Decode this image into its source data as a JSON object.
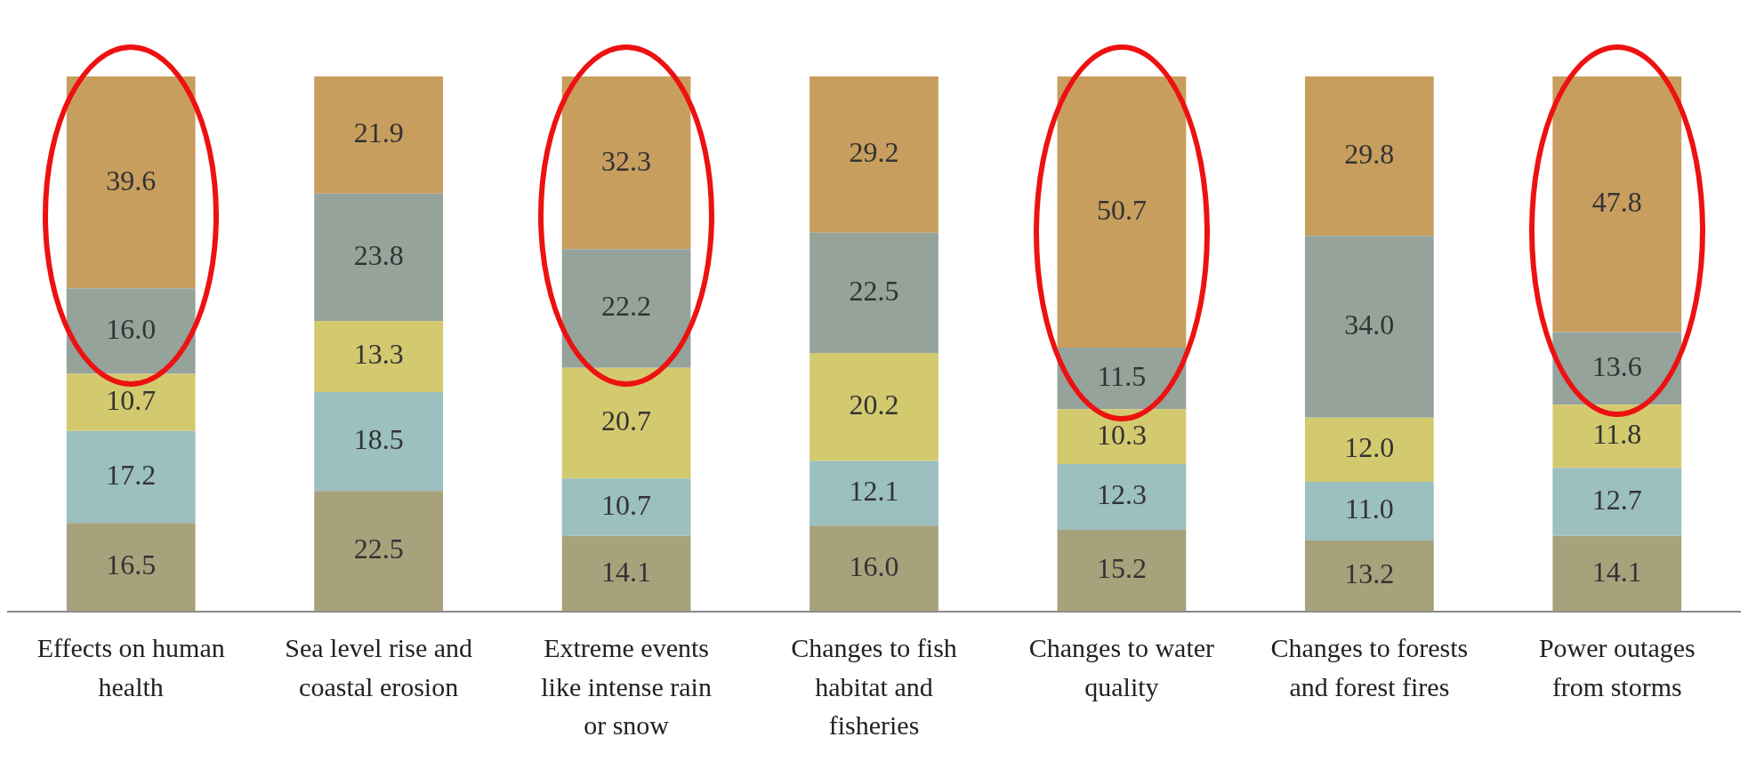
{
  "chart_data": {
    "type": "bar",
    "stacked": true,
    "categories": [
      "Effects on human health",
      "Sea level rise and coastal erosion",
      "Extreme events like intense rain or snow",
      "Changes to fish habitat and fisheries",
      "Changes to water quality",
      "Changes to forests and forest fires",
      "Power outages from storms"
    ],
    "series": [
      {
        "color": "#a8a27c",
        "values": [
          16.5,
          22.5,
          14.1,
          16.0,
          15.2,
          13.2,
          14.1
        ],
        "value_labels": [
          "16.5",
          "22.5",
          "14.1",
          "16.0",
          "15.2",
          "13.2",
          "14.1"
        ]
      },
      {
        "color": "#9cbfbf",
        "values": [
          17.2,
          18.5,
          10.7,
          12.1,
          12.3,
          11.0,
          12.7
        ],
        "value_labels": [
          "17.2",
          "18.5",
          "10.7",
          "12.1",
          "12.3",
          "11.0",
          "12.7"
        ]
      },
      {
        "color": "#d3ca6f",
        "values": [
          10.7,
          13.3,
          20.7,
          20.2,
          10.3,
          12.0,
          11.8
        ],
        "value_labels": [
          "10.7",
          "13.3",
          "20.7",
          "20.2",
          "10.3",
          "12.0",
          "11.8"
        ]
      },
      {
        "color": "#95a39b",
        "values": [
          16.0,
          23.8,
          22.2,
          22.5,
          11.5,
          34.0,
          13.6
        ],
        "value_labels": [
          "16.0",
          "23.8",
          "22.2",
          "22.5",
          "11.5",
          "34.0",
          "13.6"
        ]
      },
      {
        "color": "#c89e5e",
        "values": [
          39.6,
          21.9,
          32.3,
          29.2,
          50.7,
          29.8,
          47.8
        ],
        "value_labels": [
          "39.6",
          "21.9",
          "32.3",
          "29.2",
          "50.7",
          "29.8",
          "47.8"
        ]
      }
    ],
    "ylim": [
      0,
      100
    ],
    "tick_labels": "x",
    "grid": false,
    "legend": false
  }
}
